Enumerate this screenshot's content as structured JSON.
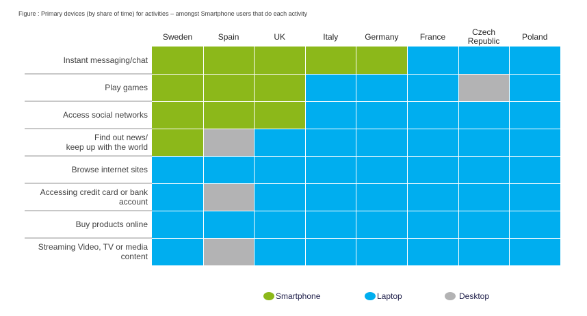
{
  "title": "Figure : Primary devices (by share of time) for activities – amongst  Smartphone users that do each activity",
  "colors": {
    "Smartphone": "#8cb81a",
    "Laptop": "#00aeef",
    "Desktop": "#b3b3b4"
  },
  "chart_data": {
    "type": "heatmap",
    "title": "Figure : Primary devices (by share of time) for activities – amongst  Smartphone users that do each activity",
    "columns": [
      "Sweden",
      "Spain",
      "UK",
      "Italy",
      "Germany",
      "France",
      "Czech Republic",
      "Poland"
    ],
    "column_labels": [
      "Sweden",
      "Spain",
      "UK",
      "Italy",
      "Germany",
      "France",
      "Czech\nRepublic",
      "Poland"
    ],
    "rows": [
      "Instant messaging/chat",
      "Play games",
      "Access social networks",
      "Find out news/\nkeep up with the world",
      "Browse internet sites",
      "Accessing credit card or bank account",
      "Buy products online",
      "Streaming Video, TV or media content"
    ],
    "values": [
      [
        "Smartphone",
        "Smartphone",
        "Smartphone",
        "Smartphone",
        "Smartphone",
        "Laptop",
        "Laptop",
        "Laptop"
      ],
      [
        "Smartphone",
        "Smartphone",
        "Smartphone",
        "Laptop",
        "Laptop",
        "Laptop",
        "Desktop",
        "Laptop"
      ],
      [
        "Smartphone",
        "Smartphone",
        "Smartphone",
        "Laptop",
        "Laptop",
        "Laptop",
        "Laptop",
        "Laptop"
      ],
      [
        "Smartphone",
        "Desktop",
        "Laptop",
        "Laptop",
        "Laptop",
        "Laptop",
        "Laptop",
        "Laptop"
      ],
      [
        "Laptop",
        "Laptop",
        "Laptop",
        "Laptop",
        "Laptop",
        "Laptop",
        "Laptop",
        "Laptop"
      ],
      [
        "Laptop",
        "Desktop",
        "Laptop",
        "Laptop",
        "Laptop",
        "Laptop",
        "Laptop",
        "Laptop"
      ],
      [
        "Laptop",
        "Laptop",
        "Laptop",
        "Laptop",
        "Laptop",
        "Laptop",
        "Laptop",
        "Laptop"
      ],
      [
        "Laptop",
        "Desktop",
        "Laptop",
        "Laptop",
        "Laptop",
        "Laptop",
        "Laptop",
        "Laptop"
      ]
    ],
    "legend": [
      "Smartphone",
      "Laptop",
      "Desktop"
    ],
    "legend_position": "bottom"
  }
}
